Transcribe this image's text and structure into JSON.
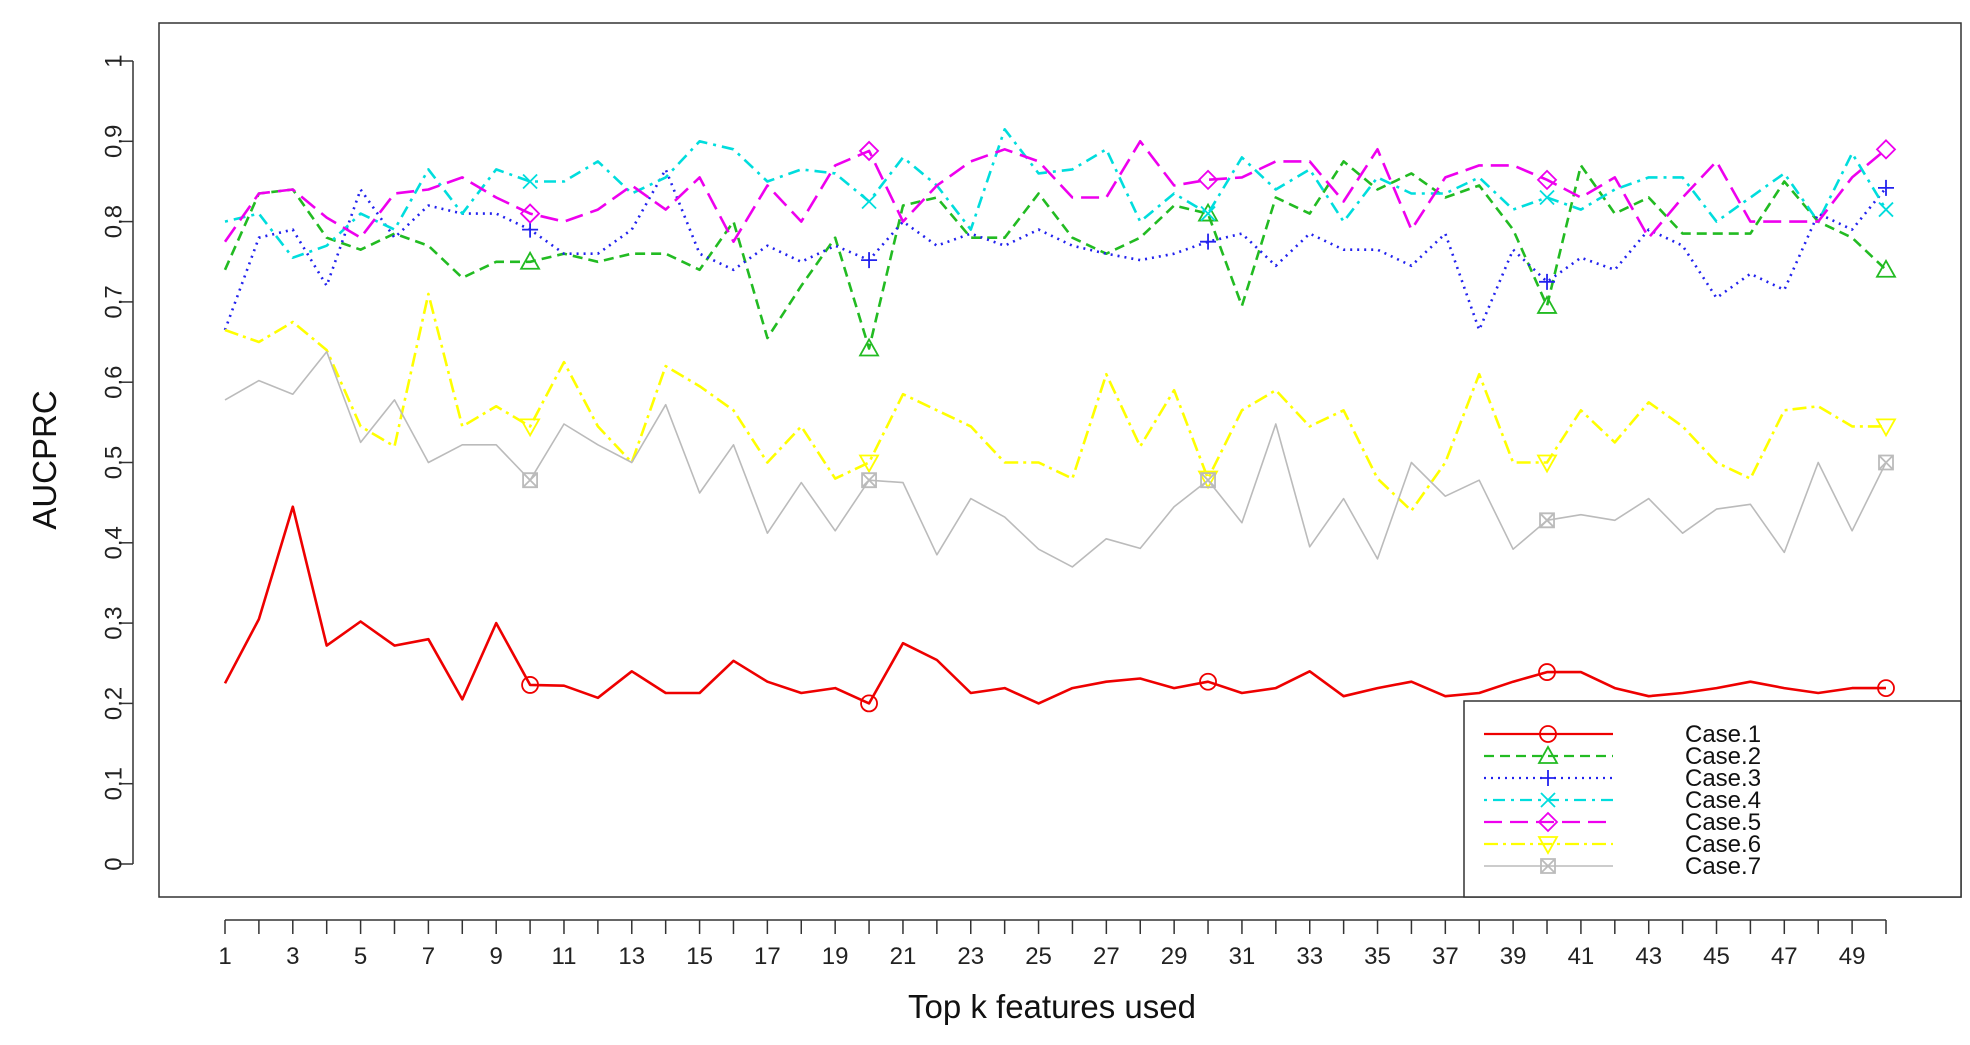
{
  "chart_data": {
    "type": "line",
    "title": "",
    "xlabel": "Top k features used",
    "ylabel": "AUCPRC",
    "xlim": [
      1,
      50
    ],
    "ylim": [
      0,
      1
    ],
    "x_ticks": [
      1,
      2,
      3,
      4,
      5,
      6,
      7,
      8,
      9,
      10,
      11,
      12,
      13,
      14,
      15,
      16,
      17,
      18,
      19,
      20,
      21,
      22,
      23,
      24,
      25,
      26,
      27,
      28,
      29,
      30,
      31,
      32,
      33,
      34,
      35,
      36,
      37,
      38,
      39,
      40,
      41,
      42,
      43,
      44,
      45,
      46,
      47,
      48,
      49,
      50
    ],
    "x_tick_labels": [
      "1",
      "3",
      "5",
      "7",
      "9",
      "11",
      "13",
      "15",
      "17",
      "19",
      "21",
      "23",
      "25",
      "27",
      "29",
      "31",
      "33",
      "35",
      "37",
      "39",
      "41",
      "43",
      "45",
      "47",
      "49"
    ],
    "y_ticks": [
      0,
      0.1,
      0.2,
      0.3,
      0.4,
      0.5,
      0.6,
      0.7,
      0.8,
      0.9,
      1
    ],
    "y_tick_labels": [
      "0",
      "0.1",
      "0.2",
      "0.3",
      "0.4",
      "0.5",
      "0.6",
      "0.7",
      "0.8",
      "0.9",
      "1"
    ],
    "legend_position": "bottom-right",
    "marker_x": [
      10,
      20,
      30,
      40,
      50
    ],
    "series": [
      {
        "name": "Case.1",
        "color": "#ee0000",
        "dash": "solid",
        "marker": "circle",
        "values": [
          0.225,
          0.305,
          0.445,
          0.272,
          0.302,
          0.272,
          0.28,
          0.205,
          0.3,
          0.223,
          0.222,
          0.207,
          0.24,
          0.213,
          0.213,
          0.253,
          0.227,
          0.213,
          0.219,
          0.2,
          0.275,
          0.254,
          0.213,
          0.219,
          0.2,
          0.219,
          0.227,
          0.231,
          0.219,
          0.227,
          0.213,
          0.219,
          0.24,
          0.209,
          0.219,
          0.227,
          0.209,
          0.213,
          0.227,
          0.239,
          0.239,
          0.219,
          0.209,
          0.213,
          0.219,
          0.227,
          0.219,
          0.213,
          0.219,
          0.219
        ]
      },
      {
        "name": "Case.2",
        "color": "#22bb22",
        "dash": "dashed",
        "marker": "triangle-up",
        "values": [
          0.74,
          0.835,
          0.84,
          0.78,
          0.765,
          0.785,
          0.77,
          0.73,
          0.75,
          0.75,
          0.76,
          0.75,
          0.76,
          0.76,
          0.74,
          0.8,
          0.655,
          0.72,
          0.78,
          0.642,
          0.82,
          0.83,
          0.78,
          0.78,
          0.835,
          0.78,
          0.76,
          0.78,
          0.82,
          0.81,
          0.695,
          0.83,
          0.81,
          0.875,
          0.84,
          0.86,
          0.83,
          0.845,
          0.79,
          0.695,
          0.87,
          0.81,
          0.83,
          0.785,
          0.785,
          0.785,
          0.85,
          0.8,
          0.78,
          0.74
        ]
      },
      {
        "name": "Case.3",
        "color": "#2222ee",
        "dash": "dotted",
        "marker": "plus",
        "values": [
          0.665,
          0.78,
          0.79,
          0.72,
          0.84,
          0.78,
          0.82,
          0.81,
          0.81,
          0.79,
          0.76,
          0.76,
          0.79,
          0.865,
          0.76,
          0.74,
          0.77,
          0.75,
          0.77,
          0.752,
          0.8,
          0.77,
          0.785,
          0.77,
          0.79,
          0.77,
          0.76,
          0.752,
          0.76,
          0.775,
          0.785,
          0.745,
          0.785,
          0.765,
          0.765,
          0.745,
          0.785,
          0.665,
          0.765,
          0.725,
          0.755,
          0.74,
          0.79,
          0.77,
          0.705,
          0.735,
          0.715,
          0.81,
          0.79,
          0.842
        ]
      },
      {
        "name": "Case.4",
        "color": "#00dddd",
        "dash": "dashdot",
        "marker": "x",
        "values": [
          0.8,
          0.81,
          0.755,
          0.77,
          0.81,
          0.79,
          0.865,
          0.81,
          0.865,
          0.85,
          0.85,
          0.875,
          0.835,
          0.855,
          0.9,
          0.89,
          0.85,
          0.865,
          0.86,
          0.825,
          0.88,
          0.845,
          0.79,
          0.915,
          0.86,
          0.865,
          0.89,
          0.8,
          0.835,
          0.81,
          0.88,
          0.84,
          0.865,
          0.8,
          0.855,
          0.835,
          0.835,
          0.855,
          0.815,
          0.83,
          0.815,
          0.84,
          0.855,
          0.855,
          0.8,
          0.83,
          0.86,
          0.8,
          0.885,
          0.815
        ]
      },
      {
        "name": "Case.5",
        "color": "#ee00ee",
        "dash": "longdash",
        "marker": "diamond",
        "values": [
          0.775,
          0.835,
          0.84,
          0.805,
          0.78,
          0.835,
          0.84,
          0.855,
          0.83,
          0.81,
          0.8,
          0.815,
          0.845,
          0.815,
          0.855,
          0.775,
          0.845,
          0.8,
          0.87,
          0.888,
          0.8,
          0.845,
          0.875,
          0.89,
          0.875,
          0.83,
          0.83,
          0.9,
          0.845,
          0.852,
          0.855,
          0.875,
          0.875,
          0.825,
          0.89,
          0.79,
          0.855,
          0.87,
          0.87,
          0.852,
          0.83,
          0.855,
          0.78,
          0.83,
          0.875,
          0.8,
          0.8,
          0.8,
          0.855,
          0.89
        ]
      },
      {
        "name": "Case.6",
        "color": "#ffff00",
        "dash": "dashdot2",
        "marker": "triangle-down",
        "values": [
          0.665,
          0.65,
          0.675,
          0.64,
          0.545,
          0.52,
          0.71,
          0.545,
          0.57,
          0.545,
          0.625,
          0.545,
          0.5,
          0.62,
          0.595,
          0.565,
          0.5,
          0.545,
          0.48,
          0.5,
          0.585,
          0.565,
          0.545,
          0.5,
          0.5,
          0.48,
          0.61,
          0.52,
          0.59,
          0.48,
          0.565,
          0.59,
          0.545,
          0.565,
          0.48,
          0.44,
          0.5,
          0.61,
          0.5,
          0.5,
          0.565,
          0.525,
          0.575,
          0.545,
          0.5,
          0.48,
          0.565,
          0.57,
          0.545,
          0.545
        ]
      },
      {
        "name": "Case.7",
        "color": "#bbbbbb",
        "dash": "solid",
        "marker": "square-x",
        "values": [
          0.578,
          0.602,
          0.585,
          0.638,
          0.525,
          0.578,
          0.5,
          0.522,
          0.522,
          0.478,
          0.548,
          0.522,
          0.5,
          0.572,
          0.462,
          0.522,
          0.412,
          0.475,
          0.415,
          0.478,
          0.475,
          0.385,
          0.455,
          0.432,
          0.392,
          0.37,
          0.405,
          0.393,
          0.445,
          0.478,
          0.425,
          0.548,
          0.395,
          0.455,
          0.38,
          0.5,
          0.458,
          0.478,
          0.392,
          0.428,
          0.435,
          0.428,
          0.455,
          0.412,
          0.442,
          0.448,
          0.388,
          0.5,
          0.415,
          0.5
        ]
      }
    ]
  }
}
